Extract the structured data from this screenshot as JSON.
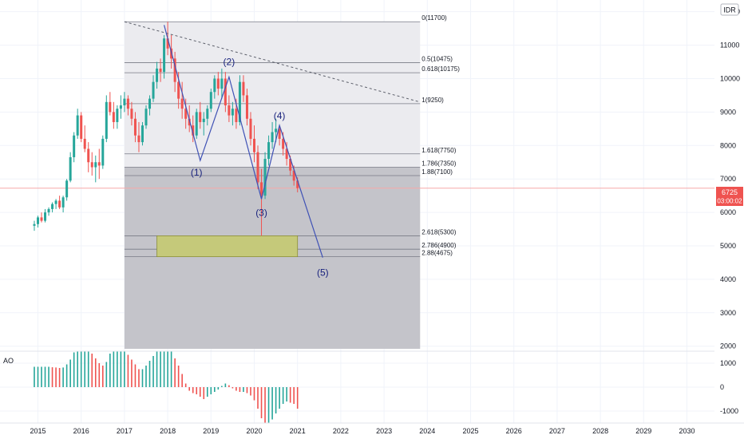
{
  "currency_badge": "IDR",
  "price_tag": {
    "value": "6725",
    "timer": "03:00:02"
  },
  "colors": {
    "bull": "#26a69a",
    "bear": "#ef5350",
    "wave": "#3f51b5",
    "fib_line": "#787b86",
    "fib_zone_light": "#ebebef",
    "fib_zone_dark": "#c4c4ca",
    "target_box": "#c5c97a",
    "price_line": "#f7a8a8"
  },
  "chart_data": [
    {
      "type": "candlestick",
      "title": "",
      "x_axis": {
        "type": "date",
        "ticks": [
          "2015",
          "2016",
          "2017",
          "2018",
          "2019",
          "2020",
          "2021",
          "2022",
          "2023",
          "2024",
          "2025",
          "2026",
          "2027",
          "2028",
          "2029",
          "2030"
        ]
      },
      "y_axis": {
        "ticks": [
          2000,
          3000,
          4000,
          5000,
          6000,
          7000,
          8000,
          9000,
          10000,
          11000,
          12000
        ],
        "range": [
          1850,
          12350
        ],
        "side": "right"
      },
      "grid": true,
      "last_price": 6725,
      "fib_levels": [
        {
          "label": "0(11700)",
          "value": 11700
        },
        {
          "label": "0.5(10475)",
          "value": 10475
        },
        {
          "label": "0.618(10175)",
          "value": 10175
        },
        {
          "label": "1(9250)",
          "value": 9250
        },
        {
          "label": "1.618(7750)",
          "value": 7750
        },
        {
          "label": "1.786(7350)",
          "value": 7350
        },
        {
          "label": "1.88(7100)",
          "value": 7100
        },
        {
          "label": "2.618(5300)",
          "value": 5300
        },
        {
          "label": "2.786(4900)",
          "value": 4900
        },
        {
          "label": "2.88(4675)",
          "value": 4675
        }
      ],
      "fib_range": {
        "start": "2017-01",
        "end": "2023-11"
      },
      "target_zone": {
        "start": "2017-10",
        "end": "2021-01",
        "low": 4675,
        "high": 5300
      },
      "trendline": [
        {
          "date": "2017-01",
          "value": 11700
        },
        {
          "date": "2023-11",
          "value": 9300
        }
      ],
      "wave_path": [
        {
          "date": "2017-12",
          "value": 11600
        },
        {
          "date": "2018-10",
          "value": 7550
        },
        {
          "date": "2019-06",
          "value": 10050
        },
        {
          "date": "2020-03",
          "value": 6400
        },
        {
          "date": "2020-08",
          "value": 8600
        },
        {
          "date": "2021-08",
          "value": 4650
        }
      ],
      "wave_labels": [
        {
          "label": "(1)",
          "date": "2018-09",
          "value": 7100
        },
        {
          "label": "(2)",
          "date": "2019-06",
          "value": 10400
        },
        {
          "label": "(3)",
          "date": "2020-03",
          "value": 5900
        },
        {
          "label": "(4)",
          "date": "2020-08",
          "value": 8800
        },
        {
          "label": "(5)",
          "date": "2021-08",
          "value": 4100
        }
      ],
      "candles": [
        {
          "d": "2014-12",
          "o": 5600,
          "h": 5750,
          "l": 5450,
          "c": 5650
        },
        {
          "d": "2015-01",
          "o": 5650,
          "h": 5900,
          "l": 5550,
          "c": 5850
        },
        {
          "d": "2015-02",
          "o": 5850,
          "h": 6000,
          "l": 5700,
          "c": 5750
        },
        {
          "d": "2015-03",
          "o": 5750,
          "h": 6100,
          "l": 5700,
          "c": 6000
        },
        {
          "d": "2015-04",
          "o": 6000,
          "h": 6150,
          "l": 5900,
          "c": 6100
        },
        {
          "d": "2015-05",
          "o": 6100,
          "h": 6300,
          "l": 6000,
          "c": 6250
        },
        {
          "d": "2015-06",
          "o": 6250,
          "h": 6400,
          "l": 6100,
          "c": 6350
        },
        {
          "d": "2015-07",
          "o": 6350,
          "h": 6500,
          "l": 6100,
          "c": 6150
        },
        {
          "d": "2015-08",
          "o": 6150,
          "h": 6500,
          "l": 6000,
          "c": 6450
        },
        {
          "d": "2015-09",
          "o": 6450,
          "h": 7000,
          "l": 6350,
          "c": 6950
        },
        {
          "d": "2015-10",
          "o": 6950,
          "h": 7800,
          "l": 6900,
          "c": 7650
        },
        {
          "d": "2015-11",
          "o": 7650,
          "h": 8400,
          "l": 7500,
          "c": 8300
        },
        {
          "d": "2015-12",
          "o": 8300,
          "h": 9100,
          "l": 8200,
          "c": 8900
        },
        {
          "d": "2016-01",
          "o": 8900,
          "h": 9000,
          "l": 8100,
          "c": 8200
        },
        {
          "d": "2016-02",
          "o": 8200,
          "h": 8600,
          "l": 7800,
          "c": 7900
        },
        {
          "d": "2016-03",
          "o": 7900,
          "h": 8100,
          "l": 7200,
          "c": 7500
        },
        {
          "d": "2016-04",
          "o": 7500,
          "h": 7800,
          "l": 7100,
          "c": 7350
        },
        {
          "d": "2016-05",
          "o": 7350,
          "h": 7700,
          "l": 6900,
          "c": 7500
        },
        {
          "d": "2016-06",
          "o": 7500,
          "h": 7900,
          "l": 7000,
          "c": 7400
        },
        {
          "d": "2016-07",
          "o": 7400,
          "h": 8300,
          "l": 7300,
          "c": 8200
        },
        {
          "d": "2016-08",
          "o": 8200,
          "h": 9500,
          "l": 8100,
          "c": 9300
        },
        {
          "d": "2016-09",
          "o": 9300,
          "h": 9600,
          "l": 8900,
          "c": 9000
        },
        {
          "d": "2016-10",
          "o": 9000,
          "h": 9300,
          "l": 8500,
          "c": 8700
        },
        {
          "d": "2016-11",
          "o": 8700,
          "h": 9200,
          "l": 8500,
          "c": 9100
        },
        {
          "d": "2016-12",
          "o": 9100,
          "h": 9500,
          "l": 8800,
          "c": 9200
        },
        {
          "d": "2017-01",
          "o": 9200,
          "h": 9600,
          "l": 9000,
          "c": 9400
        },
        {
          "d": "2017-02",
          "o": 9400,
          "h": 9500,
          "l": 8900,
          "c": 9100
        },
        {
          "d": "2017-03",
          "o": 9100,
          "h": 9300,
          "l": 8600,
          "c": 8800
        },
        {
          "d": "2017-04",
          "o": 8800,
          "h": 9000,
          "l": 8100,
          "c": 8300
        },
        {
          "d": "2017-05",
          "o": 8300,
          "h": 8700,
          "l": 7800,
          "c": 8100
        },
        {
          "d": "2017-06",
          "o": 8100,
          "h": 8700,
          "l": 8000,
          "c": 8600
        },
        {
          "d": "2017-07",
          "o": 8600,
          "h": 9200,
          "l": 8500,
          "c": 9100
        },
        {
          "d": "2017-08",
          "o": 9100,
          "h": 9500,
          "l": 8900,
          "c": 9400
        },
        {
          "d": "2017-09",
          "o": 9400,
          "h": 10100,
          "l": 9300,
          "c": 9900
        },
        {
          "d": "2017-10",
          "o": 9900,
          "h": 10500,
          "l": 9700,
          "c": 10300
        },
        {
          "d": "2017-11",
          "o": 10300,
          "h": 10600,
          "l": 9900,
          "c": 10200
        },
        {
          "d": "2017-12",
          "o": 10200,
          "h": 11300,
          "l": 10000,
          "c": 11200
        },
        {
          "d": "2018-01",
          "o": 11200,
          "h": 11700,
          "l": 10700,
          "c": 10900
        },
        {
          "d": "2018-02",
          "o": 10900,
          "h": 11300,
          "l": 10300,
          "c": 10600
        },
        {
          "d": "2018-03",
          "o": 10600,
          "h": 10800,
          "l": 9600,
          "c": 9900
        },
        {
          "d": "2018-04",
          "o": 9900,
          "h": 10200,
          "l": 9100,
          "c": 9400
        },
        {
          "d": "2018-05",
          "o": 9400,
          "h": 9900,
          "l": 8800,
          "c": 9100
        },
        {
          "d": "2018-06",
          "o": 9100,
          "h": 9400,
          "l": 8500,
          "c": 8800
        },
        {
          "d": "2018-07",
          "o": 8800,
          "h": 9200,
          "l": 8400,
          "c": 8600
        },
        {
          "d": "2018-08",
          "o": 8600,
          "h": 8900,
          "l": 8100,
          "c": 8300
        },
        {
          "d": "2018-09",
          "o": 8300,
          "h": 9100,
          "l": 8200,
          "c": 9000
        },
        {
          "d": "2018-10",
          "o": 9000,
          "h": 9300,
          "l": 8500,
          "c": 8700
        },
        {
          "d": "2018-11",
          "o": 8700,
          "h": 9000,
          "l": 8300,
          "c": 8800
        },
        {
          "d": "2018-12",
          "o": 8800,
          "h": 9200,
          "l": 8600,
          "c": 9100
        },
        {
          "d": "2019-01",
          "o": 9100,
          "h": 9700,
          "l": 9000,
          "c": 9600
        },
        {
          "d": "2019-02",
          "o": 9600,
          "h": 10100,
          "l": 9400,
          "c": 10000
        },
        {
          "d": "2019-03",
          "o": 10000,
          "h": 10200,
          "l": 9500,
          "c": 9700
        },
        {
          "d": "2019-04",
          "o": 9700,
          "h": 10300,
          "l": 9400,
          "c": 10000
        },
        {
          "d": "2019-05",
          "o": 10000,
          "h": 10200,
          "l": 9000,
          "c": 9200
        },
        {
          "d": "2019-06",
          "o": 9200,
          "h": 9500,
          "l": 8700,
          "c": 8900
        },
        {
          "d": "2019-07",
          "o": 8900,
          "h": 9300,
          "l": 8600,
          "c": 9100
        },
        {
          "d": "2019-08",
          "o": 9100,
          "h": 9400,
          "l": 8500,
          "c": 8700
        },
        {
          "d": "2019-09",
          "o": 8700,
          "h": 10100,
          "l": 8600,
          "c": 9900
        },
        {
          "d": "2019-10",
          "o": 9900,
          "h": 10100,
          "l": 9300,
          "c": 9500
        },
        {
          "d": "2019-11",
          "o": 9500,
          "h": 9700,
          "l": 8600,
          "c": 8800
        },
        {
          "d": "2019-12",
          "o": 8800,
          "h": 9000,
          "l": 8000,
          "c": 8200
        },
        {
          "d": "2020-01",
          "o": 8200,
          "h": 8600,
          "l": 7500,
          "c": 7800
        },
        {
          "d": "2020-02",
          "o": 7800,
          "h": 8000,
          "l": 6700,
          "c": 6900
        },
        {
          "d": "2020-03",
          "o": 6900,
          "h": 7300,
          "l": 5300,
          "c": 6500
        },
        {
          "d": "2020-04",
          "o": 6500,
          "h": 7800,
          "l": 6400,
          "c": 7600
        },
        {
          "d": "2020-05",
          "o": 7600,
          "h": 8300,
          "l": 7400,
          "c": 8100
        },
        {
          "d": "2020-06",
          "o": 8100,
          "h": 8700,
          "l": 7900,
          "c": 8400
        },
        {
          "d": "2020-07",
          "o": 8400,
          "h": 8800,
          "l": 8100,
          "c": 8500
        },
        {
          "d": "2020-08",
          "o": 8500,
          "h": 8600,
          "l": 8000,
          "c": 8200
        },
        {
          "d": "2020-09",
          "o": 8200,
          "h": 8400,
          "l": 7700,
          "c": 7900
        },
        {
          "d": "2020-10",
          "o": 7900,
          "h": 8100,
          "l": 7400,
          "c": 7600
        },
        {
          "d": "2020-11",
          "o": 7600,
          "h": 7700,
          "l": 7100,
          "c": 7250
        },
        {
          "d": "2020-12",
          "o": 7250,
          "h": 7400,
          "l": 6800,
          "c": 6950
        },
        {
          "d": "2021-01",
          "o": 6950,
          "h": 7050,
          "l": 6600,
          "c": 6725
        }
      ]
    },
    {
      "type": "bar",
      "title": "AO",
      "y_axis": {
        "ticks": [
          1000,
          0,
          -1000
        ],
        "range": [
          -1500,
          1500
        ]
      },
      "grid": true,
      "histogram": [
        {
          "d": "2014-12",
          "v": 850
        },
        {
          "d": "2015-01",
          "v": 850
        },
        {
          "d": "2015-02",
          "v": 850
        },
        {
          "d": "2015-03",
          "v": 850
        },
        {
          "d": "2015-04",
          "v": 850
        },
        {
          "d": "2015-05",
          "v": 830
        },
        {
          "d": "2015-06",
          "v": 820
        },
        {
          "d": "2015-07",
          "v": 800
        },
        {
          "d": "2015-08",
          "v": 820
        },
        {
          "d": "2015-09",
          "v": 950
        },
        {
          "d": "2015-10",
          "v": 1150
        },
        {
          "d": "2015-11",
          "v": 1450
        },
        {
          "d": "2015-12",
          "v": 1500
        },
        {
          "d": "2016-01",
          "v": 1500
        },
        {
          "d": "2016-02",
          "v": 1500
        },
        {
          "d": "2016-03",
          "v": 1500
        },
        {
          "d": "2016-04",
          "v": 1400
        },
        {
          "d": "2016-05",
          "v": 1200
        },
        {
          "d": "2016-06",
          "v": 1000
        },
        {
          "d": "2016-07",
          "v": 900
        },
        {
          "d": "2016-08",
          "v": 1050
        },
        {
          "d": "2016-09",
          "v": 1400
        },
        {
          "d": "2016-10",
          "v": 1500
        },
        {
          "d": "2016-11",
          "v": 1500
        },
        {
          "d": "2016-12",
          "v": 1500
        },
        {
          "d": "2017-01",
          "v": 1500
        },
        {
          "d": "2017-02",
          "v": 1350
        },
        {
          "d": "2017-03",
          "v": 1150
        },
        {
          "d": "2017-04",
          "v": 950
        },
        {
          "d": "2017-05",
          "v": 750
        },
        {
          "d": "2017-06",
          "v": 750
        },
        {
          "d": "2017-07",
          "v": 900
        },
        {
          "d": "2017-08",
          "v": 1100
        },
        {
          "d": "2017-09",
          "v": 1300
        },
        {
          "d": "2017-10",
          "v": 1500
        },
        {
          "d": "2017-11",
          "v": 1500
        },
        {
          "d": "2017-12",
          "v": 1500
        },
        {
          "d": "2018-01",
          "v": 1500
        },
        {
          "d": "2018-02",
          "v": 1500
        },
        {
          "d": "2018-03",
          "v": 1200
        },
        {
          "d": "2018-04",
          "v": 900
        },
        {
          "d": "2018-05",
          "v": 550
        },
        {
          "d": "2018-06",
          "v": 150
        },
        {
          "d": "2018-07",
          "v": -150
        },
        {
          "d": "2018-08",
          "v": -250
        },
        {
          "d": "2018-09",
          "v": -300
        },
        {
          "d": "2018-10",
          "v": -400
        },
        {
          "d": "2018-11",
          "v": -500
        },
        {
          "d": "2018-12",
          "v": -400
        },
        {
          "d": "2019-01",
          "v": -300
        },
        {
          "d": "2019-02",
          "v": -200
        },
        {
          "d": "2019-03",
          "v": -100
        },
        {
          "d": "2019-04",
          "v": 50
        },
        {
          "d": "2019-05",
          "v": 150
        },
        {
          "d": "2019-06",
          "v": 80
        },
        {
          "d": "2019-07",
          "v": -50
        },
        {
          "d": "2019-08",
          "v": -150
        },
        {
          "d": "2019-09",
          "v": -200
        },
        {
          "d": "2019-10",
          "v": -200
        },
        {
          "d": "2019-11",
          "v": -250
        },
        {
          "d": "2019-12",
          "v": -350
        },
        {
          "d": "2020-01",
          "v": -550
        },
        {
          "d": "2020-02",
          "v": -900
        },
        {
          "d": "2020-03",
          "v": -1300
        },
        {
          "d": "2020-04",
          "v": -1500
        },
        {
          "d": "2020-05",
          "v": -1500
        },
        {
          "d": "2020-06",
          "v": -1350
        },
        {
          "d": "2020-07",
          "v": -1100
        },
        {
          "d": "2020-08",
          "v": -900
        },
        {
          "d": "2020-09",
          "v": -700
        },
        {
          "d": "2020-10",
          "v": -600
        },
        {
          "d": "2020-11",
          "v": -650
        },
        {
          "d": "2020-12",
          "v": -700
        },
        {
          "d": "2021-01",
          "v": -900
        }
      ]
    }
  ]
}
